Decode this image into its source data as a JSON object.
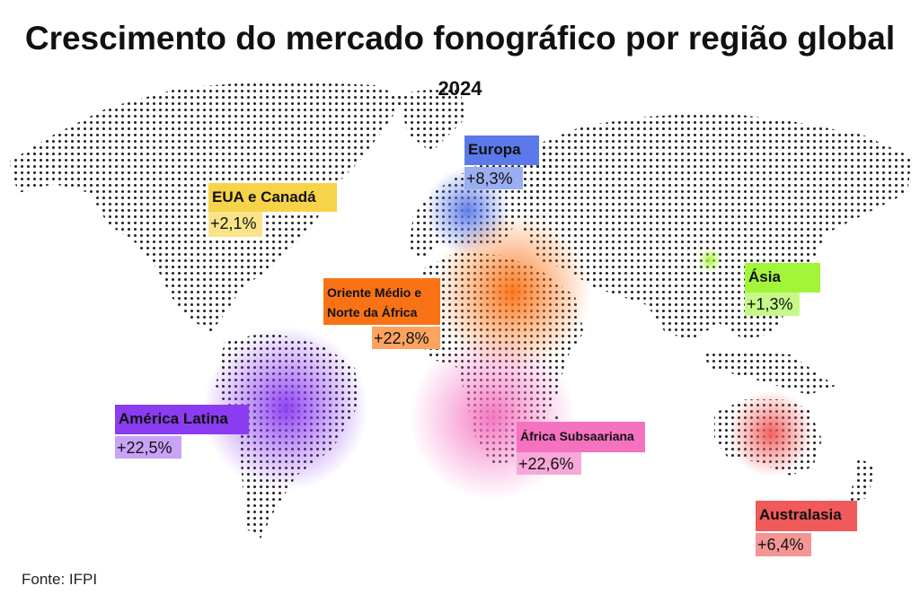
{
  "title": "Crescimento do mercado fonográfico por região global",
  "subtitle": "2024",
  "regions": [
    {
      "name": "EUA e Canadá",
      "growth": "+2,1%"
    },
    {
      "name": "Europa",
      "growth": "+8,3%"
    },
    {
      "name": "Oriente Médio e Norte da África",
      "growth": "+22,8%"
    },
    {
      "name": "América Latina",
      "growth": "+22,5%"
    },
    {
      "name": "África Subsaariana",
      "growth": "+22,6%"
    },
    {
      "name": "Ásia",
      "growth": "+1,3%"
    },
    {
      "name": "Australasia",
      "growth": "+6,4%"
    }
  ],
  "source": "Fonte: IFPI"
}
